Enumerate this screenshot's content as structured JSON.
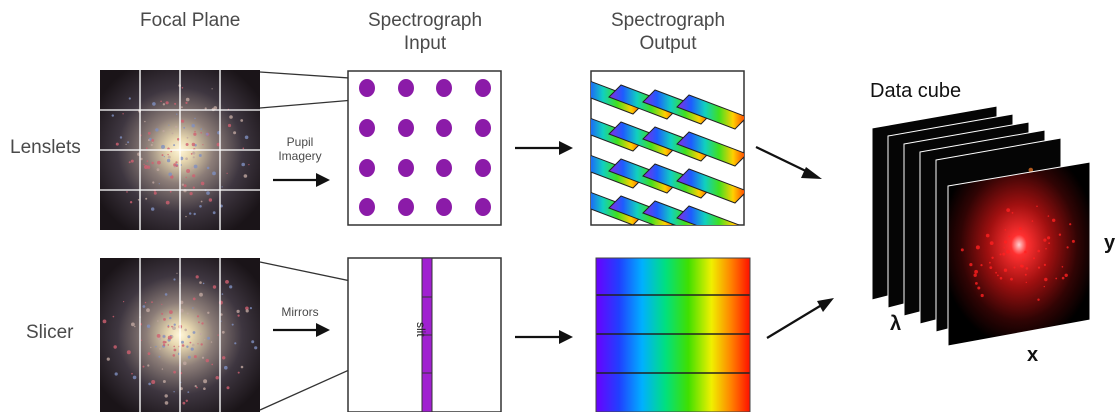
{
  "headers": {
    "focal_plane": "Focal Plane",
    "spec_input": "Spectrograph Input",
    "spec_output": "Spectrograph Output"
  },
  "rows": {
    "lenslets": "Lenslets",
    "slicer": "Slicer"
  },
  "arrows": {
    "pupil_imagery": "Pupil Imagery",
    "mirrors": "Mirrors"
  },
  "slit_label": "slit",
  "cube": {
    "title": "Data cube",
    "axis_lambda": "λ",
    "axis_x": "x",
    "axis_y": "y"
  },
  "colors": {
    "lenslet_dot": "#8b1ba8",
    "slit": "#a020d0",
    "cube_red": "#ff2020"
  }
}
